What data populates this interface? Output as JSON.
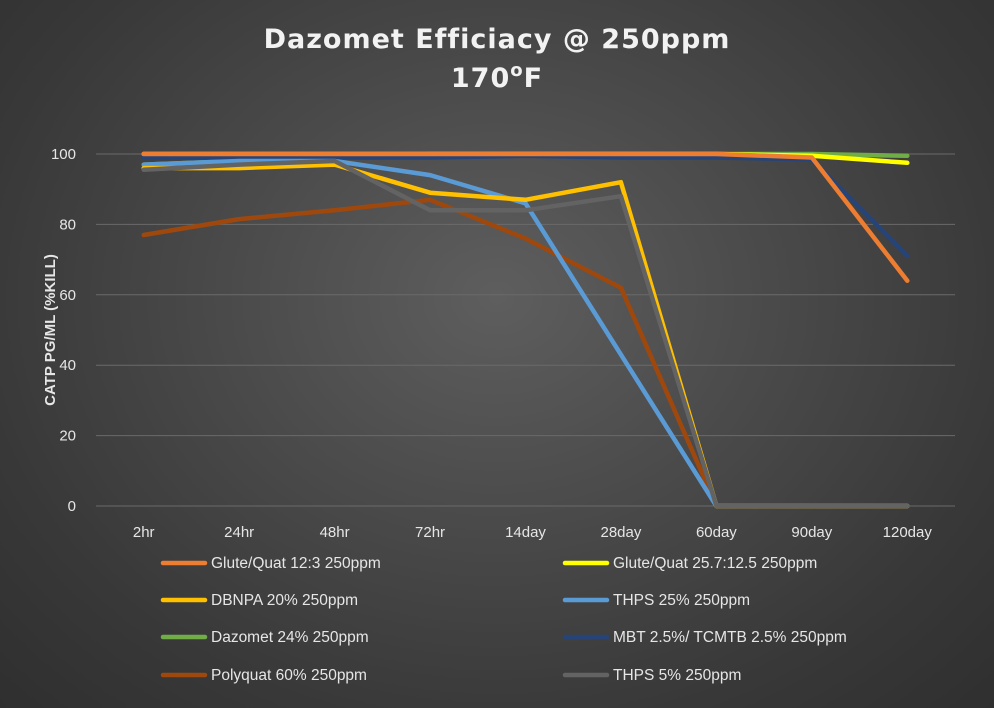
{
  "chart_data": {
    "type": "line",
    "title": "Dazomet Efficiacy @ 250ppm",
    "subtitle": "170",
    "subtitle_sup": "o",
    "subtitle_unit": "F",
    "ylabel": "CATP PG/ML (%KILL)",
    "xlabel": "",
    "ylim": [
      0,
      100
    ],
    "yticks": [
      0,
      20,
      40,
      60,
      80,
      100
    ],
    "grid": true,
    "legend_position": "bottom",
    "categories": [
      "2hr",
      "24hr",
      "48hr",
      "72hr",
      "14day",
      "28day",
      "60day",
      "90day",
      "120day"
    ],
    "series": [
      {
        "name": "Glute/Quat 12:3 250ppm",
        "color": "#ed7d31",
        "values": [
          100,
          100,
          100,
          100,
          100,
          100,
          100,
          99,
          64
        ]
      },
      {
        "name": "Glute/Quat 25.7:12.5 250ppm",
        "color": "#ffff00",
        "values": [
          100,
          100,
          100,
          100,
          100,
          100,
          100,
          99.5,
          97.5
        ]
      },
      {
        "name": "DBNPA 20% 250ppm",
        "color": "#ffc000",
        "values": [
          96,
          96,
          97,
          89,
          87,
          92,
          0,
          0,
          0
        ]
      },
      {
        "name": "THPS 25% 250ppm",
        "color": "#5b9bd5",
        "values": [
          97,
          98,
          98,
          94,
          86,
          43,
          0,
          0,
          0
        ]
      },
      {
        "name": "Dazomet 24% 250ppm",
        "color": "#70ad47",
        "values": [
          97,
          98,
          99,
          100,
          100,
          100,
          100,
          100,
          99.5
        ]
      },
      {
        "name": "MBT 2.5%/ TCMTB 2.5% 250ppm",
        "color": "#264478",
        "values": [
          99,
          99,
          99,
          99,
          99.5,
          99,
          99,
          98.5,
          71
        ]
      },
      {
        "name": "Polyquat 60% 250ppm",
        "color": "#9e480e",
        "values": [
          77,
          81.5,
          84,
          87,
          76,
          62,
          0,
          0,
          0
        ]
      },
      {
        "name": "THPS 5% 250ppm",
        "color": "#636363",
        "values": [
          95.5,
          97,
          98,
          84,
          84,
          88,
          0,
          0,
          0
        ]
      }
    ]
  }
}
